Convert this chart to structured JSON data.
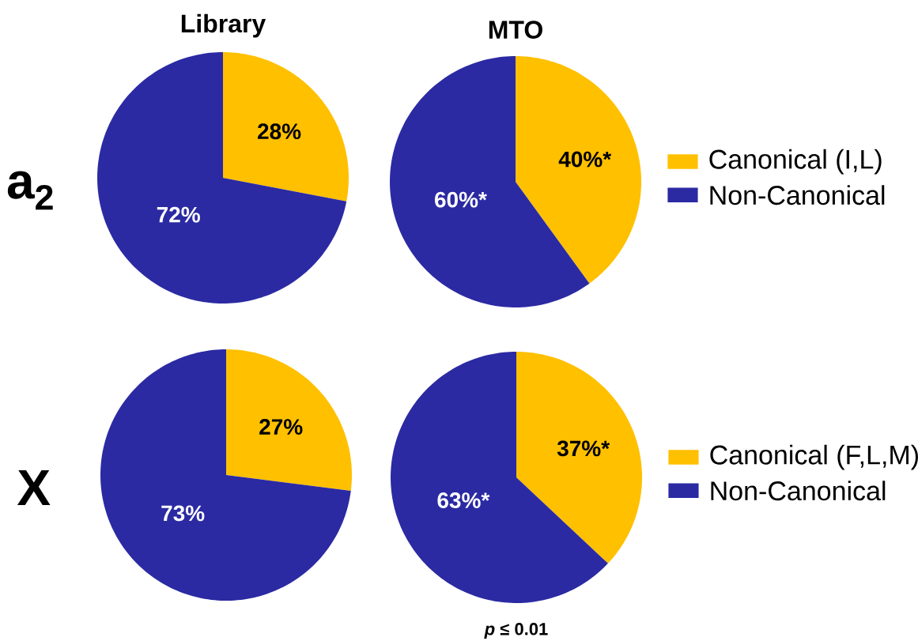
{
  "chart_data": [
    {
      "type": "pie",
      "title": "Library",
      "categories": [
        null,
        null
      ],
      "values": [
        28,
        72
      ],
      "colors": [
        "#ffc000",
        "#2b2aa3"
      ],
      "value_labels": [
        "28%",
        "72%"
      ],
      "annotations": [
        "a$_{2}$"
      ]
    },
    {
      "type": "pie",
      "title": "MTO",
      "categories": [
        "Canonical (I,L)",
        "Non-Canonical"
      ],
      "values": [
        40,
        60
      ],
      "colors": [
        "#ffc000",
        "#2b2aa3"
      ],
      "value_labels": [
        "40%*",
        "60%*"
      ],
      "legend": "right"
    },
    {
      "type": "pie",
      "categories": [
        null,
        null
      ],
      "values": [
        27,
        73
      ],
      "colors": [
        "#ffc000",
        "#2b2aa3"
      ],
      "value_labels": [
        "27%",
        "73%"
      ],
      "annotations": [
        "X"
      ]
    },
    {
      "type": "pie",
      "categories": [
        "Canonical (F,L,M)",
        "Non-Canonical"
      ],
      "values": [
        37,
        63
      ],
      "colors": [
        "#ffc000",
        "#2b2aa3"
      ],
      "value_labels": [
        "37%*",
        "63%*"
      ],
      "legend": "right",
      "annotations": [
        "*p* ≤ 0.01"
      ]
    }
  ]
}
